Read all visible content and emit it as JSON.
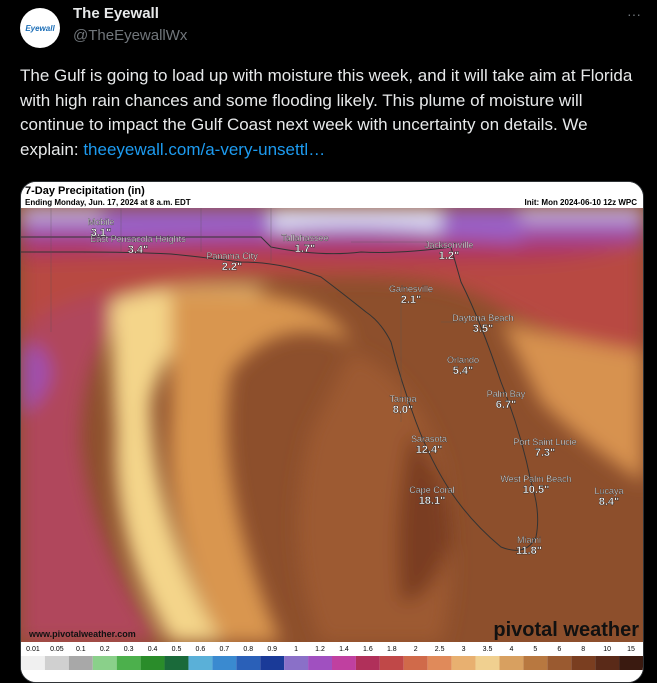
{
  "header": {
    "avatar": "Eyewall",
    "name": "The Eyewall",
    "handle": "@TheEyewallWx",
    "menu": "···"
  },
  "tweet": {
    "text": "The Gulf is going to load up with moisture this week, and it will take aim at Florida with high rain chances and some flooding likely. This plume of moisture will continue to impact the Gulf Coast next week with uncertainty on details. We explain: ",
    "link": "theeyewall.com/a-very-unsettl…"
  },
  "map": {
    "title": "7-Day Precipitation (in)",
    "subtitle": "Ending Monday, Jun. 17, 2024 at 8 a.m. EDT",
    "init": "Init: Mon 2024-06-10 12z WPC",
    "source": "www.pivotalweather.com",
    "logo": "pivotal weather",
    "cities": [
      {
        "name": "Mobile",
        "value": "3.1\""
      },
      {
        "name": "East Pensacola Heights",
        "value": "3.4\""
      },
      {
        "name": "Panama City",
        "value": "2.2\""
      },
      {
        "name": "Tallahassee",
        "value": "1.7\""
      },
      {
        "name": "Jacksonville",
        "value": "1.2\""
      },
      {
        "name": "Gainesville",
        "value": "2.1\""
      },
      {
        "name": "Daytona Beach",
        "value": "3.5\""
      },
      {
        "name": "Orlando",
        "value": "5.4\""
      },
      {
        "name": "Palm Bay",
        "value": "6.7\""
      },
      {
        "name": "Tampa",
        "value": "8.0\""
      },
      {
        "name": "Sarasota",
        "value": "12.4\""
      },
      {
        "name": "Port Saint Lucie",
        "value": "7.3\""
      },
      {
        "name": "West Palm Beach",
        "value": "10.5\""
      },
      {
        "name": "Lucaya",
        "value": "8.4\""
      },
      {
        "name": "Cape Coral",
        "value": "18.1\""
      },
      {
        "name": "Miami",
        "value": "11.8\""
      }
    ],
    "scale": [
      0.01,
      0.05,
      0.1,
      0.2,
      0.3,
      0.4,
      0.5,
      0.6,
      0.7,
      0.8,
      0.9,
      1,
      1.2,
      1.4,
      1.6,
      1.8,
      2,
      2.5,
      3,
      3.5,
      4,
      5,
      6,
      8,
      10,
      15
    ]
  }
}
